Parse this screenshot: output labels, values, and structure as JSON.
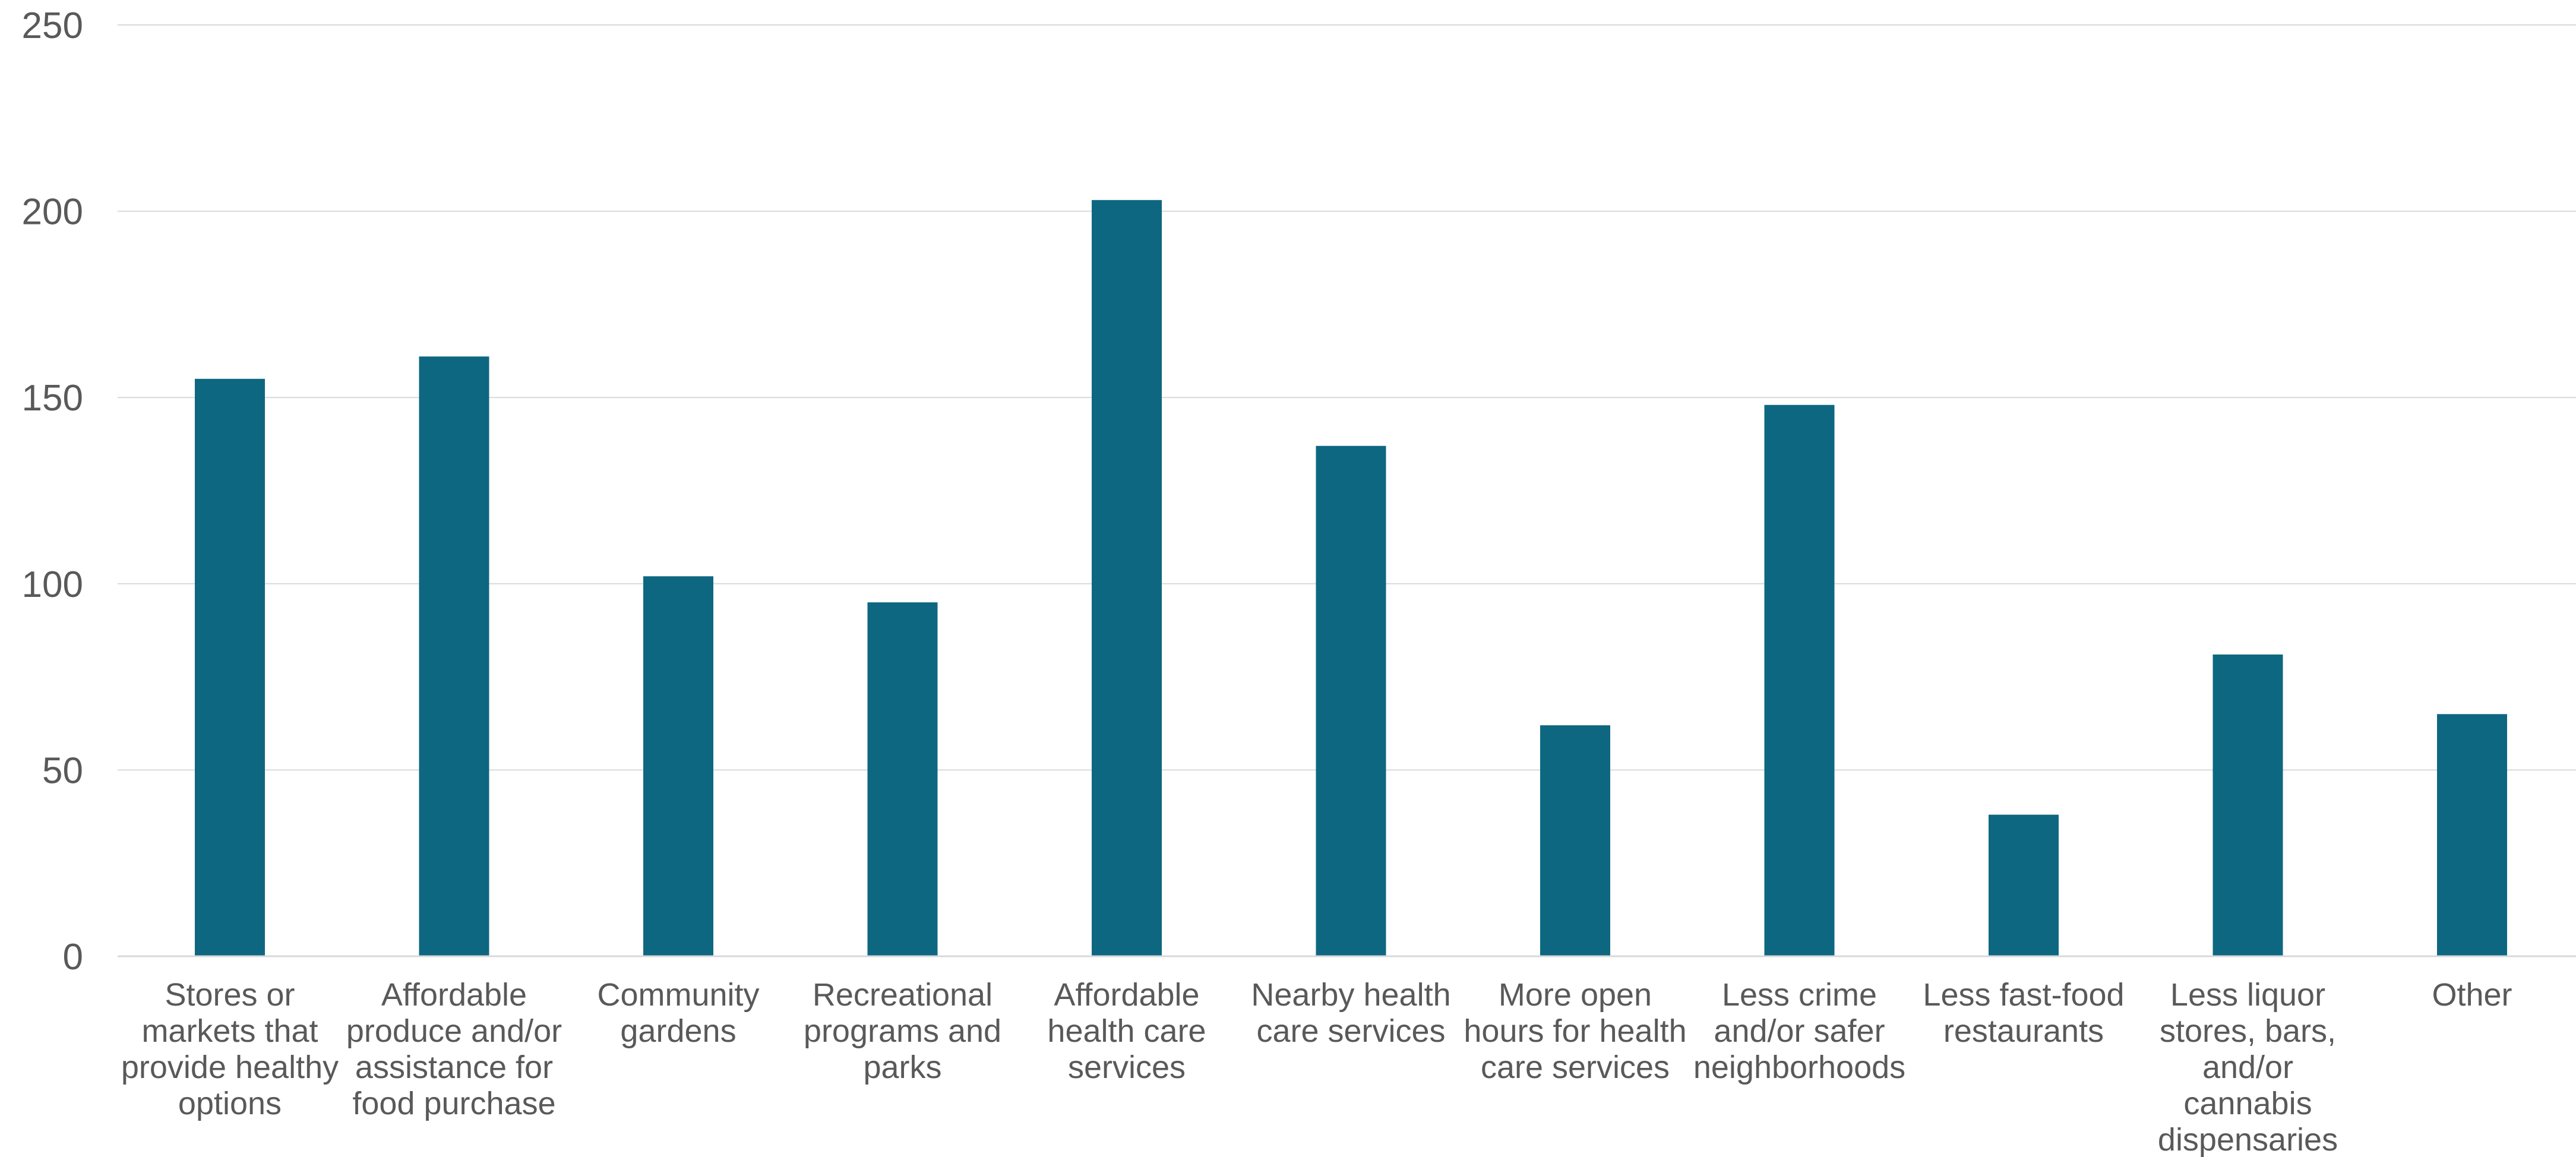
{
  "chart_data": {
    "type": "bar",
    "title": "",
    "xlabel": "",
    "ylabel": "",
    "ylim": [
      0,
      250
    ],
    "yticks": [
      0,
      50,
      100,
      150,
      200,
      250
    ],
    "grid": true,
    "legend": "none",
    "bar_color": "#0e6781",
    "categories": [
      [
        "Stores or",
        "markets that",
        "provide healthy",
        "options"
      ],
      [
        "Affordable",
        "produce and/or",
        "assistance for",
        "food purchase"
      ],
      [
        "Community",
        "gardens"
      ],
      [
        "Recreational",
        "programs and",
        "parks"
      ],
      [
        "Affordable",
        "health care",
        "services"
      ],
      [
        "Nearby health",
        "care services"
      ],
      [
        "More open",
        "hours for health",
        "care services"
      ],
      [
        "Less crime",
        "and/or safer",
        "neighborhoods"
      ],
      [
        "Less fast-food",
        "restaurants"
      ],
      [
        "Less liquor",
        "stores, bars,",
        "and/or",
        "cannabis",
        "dispensaries"
      ],
      [
        "Other"
      ]
    ],
    "values": [
      155,
      161,
      102,
      95,
      203,
      137,
      62,
      148,
      38,
      81,
      65
    ]
  }
}
